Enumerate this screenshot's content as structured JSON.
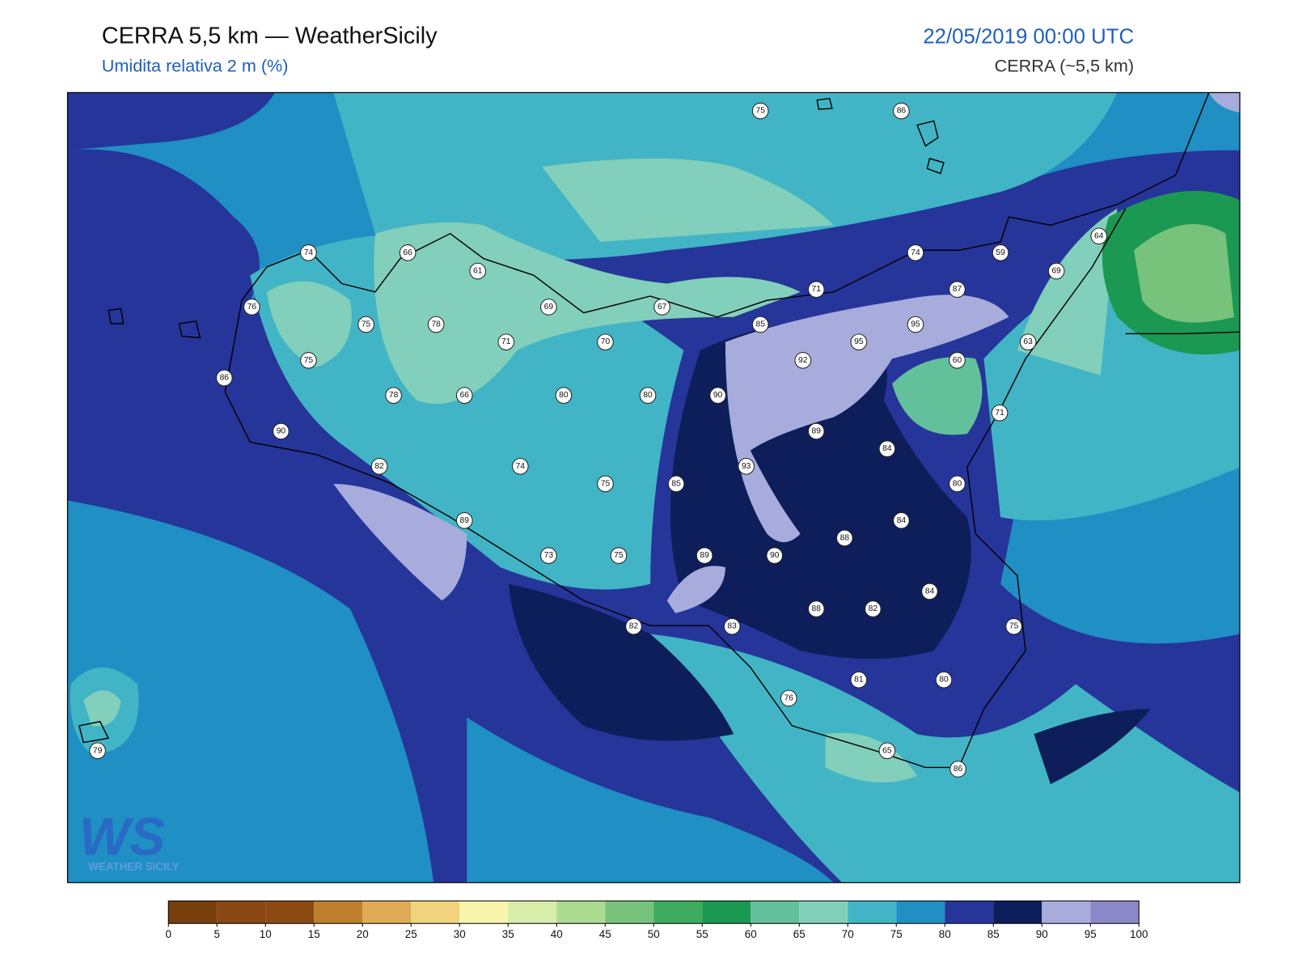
{
  "header": {
    "title": "CERRA 5,5 km — WeatherSicily",
    "subtitle": "Umidita relativa 2 m (%)",
    "datetime": "22/05/2019 00:00 UTC",
    "model": "CERRA (~5,5 km)"
  },
  "map": {
    "station_values": [
      75,
      86,
      74,
      66,
      61,
      74,
      59,
      64,
      69,
      76,
      75,
      78,
      69,
      67,
      71,
      87,
      85,
      95,
      95,
      63,
      75,
      71,
      70,
      92,
      60,
      86,
      78,
      66,
      80,
      80,
      90,
      71,
      90,
      89,
      84,
      82,
      74,
      93,
      75,
      85,
      80,
      89,
      84,
      88,
      73,
      75,
      89,
      90,
      84,
      88,
      82,
      82,
      83,
      75,
      81,
      80,
      76,
      65,
      86,
      79
    ]
  },
  "colorbar": {
    "ticks": [
      0,
      5,
      10,
      15,
      20,
      25,
      30,
      35,
      40,
      45,
      50,
      55,
      60,
      65,
      70,
      75,
      80,
      85,
      90,
      95,
      100
    ],
    "colors": [
      "#773f0b",
      "#8a4711",
      "#8c4a13",
      "#c07e2f",
      "#dfab57",
      "#f0d37c",
      "#f7f5aa",
      "#d7eda8",
      "#abdb8f",
      "#77c37b",
      "#3fab5f",
      "#1b9851",
      "#62c09b",
      "#82cfbb",
      "#41b5c5",
      "#1f8fc4",
      "#26359a",
      "#0d1e5a",
      "#a7acdc",
      "#8c89c8"
    ]
  },
  "logo": {
    "mark": "WS",
    "text": "WEATHER SICILY"
  }
}
